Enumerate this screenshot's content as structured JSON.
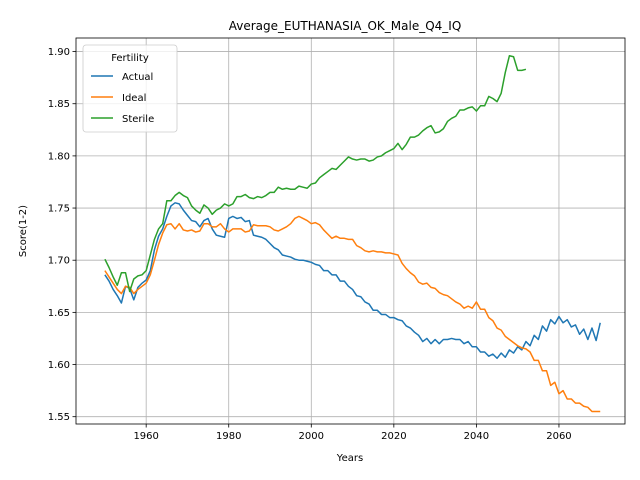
{
  "chart_data": {
    "type": "line",
    "title": "Average_EUTHANASIA_OK_Male_Q4_IQ",
    "xlabel": "Years",
    "ylabel": "Score(1-2)",
    "xlim": [
      1943,
      2076
    ],
    "ylim": [
      1.543,
      1.913
    ],
    "xticks": [
      1960,
      1980,
      2000,
      2020,
      2040,
      2060
    ],
    "yticks": [
      1.55,
      1.6,
      1.65,
      1.7,
      1.75,
      1.8,
      1.85,
      1.9
    ],
    "ytick_labels": [
      "1.55",
      "1.60",
      "1.65",
      "1.70",
      "1.75",
      "1.80",
      "1.85",
      "1.90"
    ],
    "grid": true,
    "legend": {
      "title": "Fertility",
      "placement": "upper-left"
    },
    "series": [
      {
        "name": "Actual",
        "color": "#1f77b4",
        "x": [
          1950,
          1951,
          1952,
          1953,
          1954,
          1955,
          1956,
          1957,
          1958,
          1959,
          1960,
          1961,
          1962,
          1963,
          1964,
          1965,
          1966,
          1967,
          1968,
          1969,
          1970,
          1971,
          1972,
          1973,
          1974,
          1975,
          1976,
          1977,
          1978,
          1979,
          1980,
          1981,
          1982,
          1983,
          1984,
          1985,
          1986,
          1987,
          1988,
          1989,
          1990,
          1991,
          1992,
          1993,
          1994,
          1995,
          1996,
          1997,
          1998,
          1999,
          2000,
          2001,
          2002,
          2003,
          2004,
          2005,
          2006,
          2007,
          2008,
          2009,
          2010,
          2011,
          2012,
          2013,
          2014,
          2015,
          2016,
          2017,
          2018,
          2019,
          2020,
          2021,
          2022,
          2023,
          2024,
          2025,
          2026,
          2027,
          2028,
          2029,
          2030,
          2031,
          2032,
          2033,
          2034,
          2035,
          2036,
          2037,
          2038,
          2039,
          2040,
          2041,
          2042,
          2043,
          2044,
          2045,
          2046,
          2047,
          2048,
          2049,
          2050,
          2051,
          2052,
          2053,
          2054,
          2055,
          2056,
          2057,
          2058,
          2059,
          2060,
          2061,
          2062,
          2063,
          2064,
          2065,
          2066,
          2067,
          2068,
          2069,
          2070
        ],
        "y": [
          1.686,
          1.68,
          1.672,
          1.666,
          1.659,
          1.675,
          1.673,
          1.662,
          1.674,
          1.678,
          1.681,
          1.69,
          1.71,
          1.723,
          1.73,
          1.742,
          1.752,
          1.755,
          1.754,
          1.748,
          1.743,
          1.738,
          1.737,
          1.732,
          1.738,
          1.74,
          1.73,
          1.724,
          1.723,
          1.722,
          1.74,
          1.742,
          1.74,
          1.741,
          1.737,
          1.738,
          1.724,
          1.723,
          1.722,
          1.72,
          1.716,
          1.712,
          1.71,
          1.705,
          1.704,
          1.703,
          1.701,
          1.7,
          1.7,
          1.699,
          1.698,
          1.696,
          1.695,
          1.69,
          1.69,
          1.686,
          1.686,
          1.68,
          1.68,
          1.675,
          1.672,
          1.666,
          1.665,
          1.66,
          1.658,
          1.652,
          1.652,
          1.648,
          1.648,
          1.645,
          1.645,
          1.643,
          1.642,
          1.637,
          1.635,
          1.631,
          1.628,
          1.622,
          1.625,
          1.62,
          1.624,
          1.62,
          1.624,
          1.624,
          1.625,
          1.624,
          1.624,
          1.62,
          1.622,
          1.617,
          1.617,
          1.612,
          1.612,
          1.608,
          1.61,
          1.606,
          1.611,
          1.607,
          1.614,
          1.611,
          1.617,
          1.614,
          1.622,
          1.618,
          1.628,
          1.624,
          1.637,
          1.632,
          1.643,
          1.639,
          1.646,
          1.64,
          1.643,
          1.636,
          1.638,
          1.629,
          1.634,
          1.624,
          1.635,
          1.623,
          1.64
        ]
      },
      {
        "name": "Ideal",
        "color": "#ff7f0e",
        "x": [
          1950,
          1951,
          1952,
          1953,
          1954,
          1955,
          1956,
          1957,
          1958,
          1959,
          1960,
          1961,
          1962,
          1963,
          1964,
          1965,
          1966,
          1967,
          1968,
          1969,
          1970,
          1971,
          1972,
          1973,
          1974,
          1975,
          1976,
          1977,
          1978,
          1979,
          1980,
          1981,
          1982,
          1983,
          1984,
          1985,
          1986,
          1987,
          1988,
          1989,
          1990,
          1991,
          1992,
          1993,
          1994,
          1995,
          1996,
          1997,
          1998,
          1999,
          2000,
          2001,
          2002,
          2003,
          2004,
          2005,
          2006,
          2007,
          2008,
          2009,
          2010,
          2011,
          2012,
          2013,
          2014,
          2015,
          2016,
          2017,
          2018,
          2019,
          2020,
          2021,
          2022,
          2023,
          2024,
          2025,
          2026,
          2027,
          2028,
          2029,
          2030,
          2031,
          2032,
          2033,
          2034,
          2035,
          2036,
          2037,
          2038,
          2039,
          2040,
          2041,
          2042,
          2043,
          2044,
          2045,
          2046,
          2047,
          2048,
          2049,
          2050,
          2051,
          2052,
          2053,
          2054,
          2055,
          2056,
          2057,
          2058,
          2059,
          2060,
          2061,
          2062,
          2063,
          2064,
          2065,
          2066,
          2067,
          2068,
          2069,
          2070
        ],
        "y": [
          1.69,
          1.684,
          1.678,
          1.672,
          1.668,
          1.675,
          1.674,
          1.668,
          1.672,
          1.675,
          1.678,
          1.686,
          1.7,
          1.715,
          1.726,
          1.734,
          1.735,
          1.73,
          1.735,
          1.729,
          1.728,
          1.729,
          1.727,
          1.728,
          1.735,
          1.735,
          1.732,
          1.732,
          1.735,
          1.73,
          1.727,
          1.73,
          1.73,
          1.73,
          1.727,
          1.728,
          1.734,
          1.733,
          1.733,
          1.733,
          1.732,
          1.729,
          1.728,
          1.73,
          1.732,
          1.735,
          1.74,
          1.742,
          1.74,
          1.738,
          1.735,
          1.736,
          1.734,
          1.729,
          1.725,
          1.721,
          1.723,
          1.721,
          1.721,
          1.72,
          1.72,
          1.714,
          1.712,
          1.709,
          1.708,
          1.709,
          1.708,
          1.708,
          1.707,
          1.707,
          1.706,
          1.705,
          1.697,
          1.692,
          1.688,
          1.685,
          1.679,
          1.677,
          1.678,
          1.674,
          1.673,
          1.669,
          1.667,
          1.666,
          1.663,
          1.66,
          1.658,
          1.654,
          1.656,
          1.654,
          1.66,
          1.653,
          1.653,
          1.645,
          1.642,
          1.635,
          1.633,
          1.627,
          1.624,
          1.621,
          1.618,
          1.616,
          1.615,
          1.612,
          1.604,
          1.604,
          1.594,
          1.594,
          1.58,
          1.583,
          1.572,
          1.575,
          1.567,
          1.567,
          1.563,
          1.563,
          1.56,
          1.559,
          1.555,
          1.555,
          1.555
        ]
      },
      {
        "name": "Sterile",
        "color": "#2ca02c",
        "x": [
          1950,
          1951,
          1952,
          1953,
          1954,
          1955,
          1956,
          1957,
          1958,
          1959,
          1960,
          1961,
          1962,
          1963,
          1964,
          1965,
          1966,
          1967,
          1968,
          1969,
          1970,
          1971,
          1972,
          1973,
          1974,
          1975,
          1976,
          1977,
          1978,
          1979,
          1980,
          1981,
          1982,
          1983,
          1984,
          1985,
          1986,
          1987,
          1988,
          1989,
          1990,
          1991,
          1992,
          1993,
          1994,
          1995,
          1996,
          1997,
          1998,
          1999,
          2000,
          2001,
          2002,
          2003,
          2004,
          2005,
          2006,
          2007,
          2008,
          2009,
          2010,
          2011,
          2012,
          2013,
          2014,
          2015,
          2016,
          2017,
          2018,
          2019,
          2020,
          2021,
          2022,
          2023,
          2024,
          2025,
          2026,
          2027,
          2028,
          2029,
          2030,
          2031,
          2032,
          2033,
          2034,
          2035,
          2036,
          2037,
          2038,
          2039,
          2040,
          2041,
          2042,
          2043,
          2044,
          2045,
          2046,
          2047,
          2048,
          2049,
          2050,
          2051,
          2052
        ],
        "y": [
          1.701,
          1.693,
          1.684,
          1.676,
          1.688,
          1.688,
          1.67,
          1.682,
          1.685,
          1.686,
          1.69,
          1.705,
          1.72,
          1.73,
          1.735,
          1.757,
          1.757,
          1.762,
          1.765,
          1.762,
          1.76,
          1.752,
          1.748,
          1.745,
          1.753,
          1.75,
          1.744,
          1.748,
          1.75,
          1.754,
          1.752,
          1.754,
          1.761,
          1.761,
          1.763,
          1.76,
          1.759,
          1.761,
          1.76,
          1.762,
          1.765,
          1.765,
          1.77,
          1.768,
          1.769,
          1.768,
          1.768,
          1.771,
          1.77,
          1.769,
          1.773,
          1.774,
          1.779,
          1.782,
          1.785,
          1.788,
          1.787,
          1.791,
          1.795,
          1.799,
          1.797,
          1.796,
          1.797,
          1.797,
          1.795,
          1.796,
          1.799,
          1.8,
          1.803,
          1.805,
          1.807,
          1.812,
          1.806,
          1.811,
          1.818,
          1.818,
          1.82,
          1.824,
          1.827,
          1.829,
          1.822,
          1.823,
          1.826,
          1.833,
          1.836,
          1.838,
          1.844,
          1.844,
          1.846,
          1.847,
          1.843,
          1.848,
          1.848,
          1.857,
          1.855,
          1.852,
          1.86,
          1.88,
          1.896,
          1.895,
          1.882,
          1.882,
          1.883
        ]
      }
    ]
  }
}
